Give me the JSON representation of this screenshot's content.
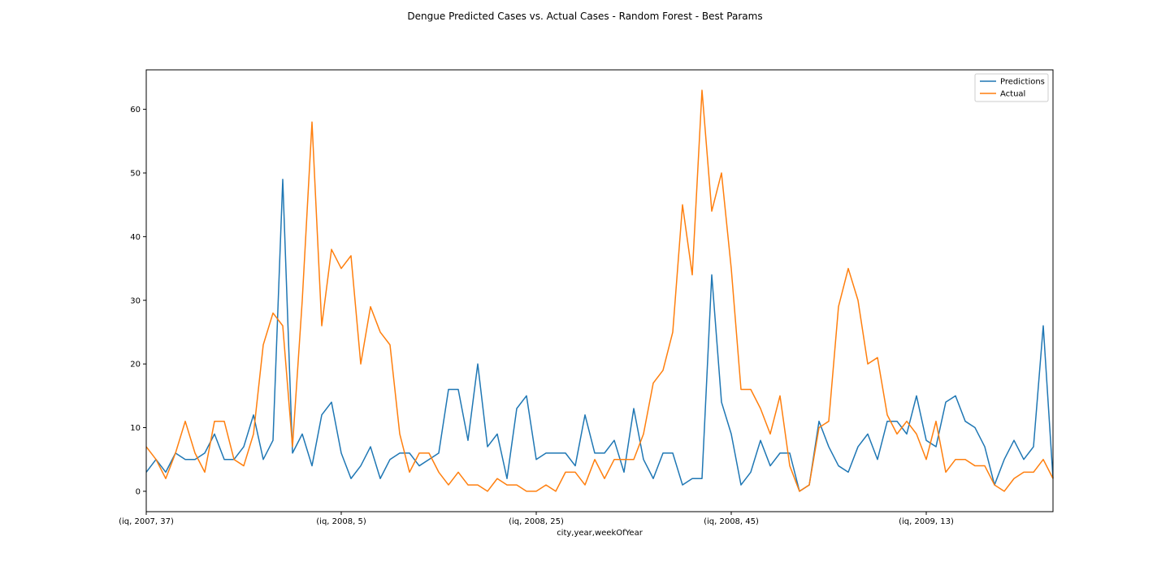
{
  "chart_data": {
    "type": "line",
    "title": "Dengue Predicted Cases vs. Actual Cases - Random Forest - Best Params",
    "xlabel": "city,year,weekOfYear",
    "ylabel": "",
    "x_tick_labels": [
      {
        "index": 0,
        "label": "(iq, 2007, 37)"
      },
      {
        "index": 20,
        "label": "(iq, 2008, 5)"
      },
      {
        "index": 40,
        "label": "(iq, 2008, 25)"
      },
      {
        "index": 60,
        "label": "(iq, 2008, 45)"
      },
      {
        "index": 80,
        "label": "(iq, 2009, 13)"
      }
    ],
    "y_ticks": [
      0,
      10,
      20,
      30,
      40,
      50,
      60
    ],
    "ylim": [
      -3.2,
      66.2
    ],
    "xlim": [
      0,
      93
    ],
    "legend": "top-right",
    "grid": false,
    "series": [
      {
        "name": "Predictions",
        "color": "#1f77b4",
        "values": [
          3,
          5,
          3,
          6,
          5,
          5,
          6,
          9,
          5,
          5,
          7,
          12,
          5,
          8,
          49,
          6,
          9,
          4,
          12,
          14,
          6,
          2,
          4,
          7,
          2,
          5,
          6,
          6,
          4,
          5,
          6,
          16,
          16,
          8,
          20,
          7,
          9,
          2,
          13,
          15,
          5,
          6,
          6,
          6,
          4,
          12,
          6,
          6,
          8,
          3,
          13,
          5,
          2,
          6,
          6,
          1,
          2,
          2,
          34,
          14,
          9,
          1,
          3,
          8,
          4,
          6,
          6,
          0,
          1,
          11,
          7,
          4,
          3,
          7,
          9,
          5,
          11,
          11,
          9,
          15,
          8,
          7,
          14,
          15,
          11,
          10,
          7,
          1,
          5,
          8,
          5,
          7,
          26,
          2
        ]
      },
      {
        "name": "Actual",
        "color": "#ff7f0e",
        "values": [
          7,
          5,
          2,
          6,
          11,
          6,
          3,
          11,
          11,
          5,
          4,
          9,
          23,
          28,
          26,
          7,
          30,
          58,
          26,
          38,
          35,
          37,
          20,
          29,
          25,
          23,
          9,
          3,
          6,
          6,
          3,
          1,
          3,
          1,
          1,
          0,
          2,
          1,
          1,
          0,
          0,
          1,
          0,
          3,
          3,
          1,
          5,
          2,
          5,
          5,
          5,
          9,
          17,
          19,
          25,
          45,
          34,
          63,
          44,
          50,
          35,
          16,
          16,
          13,
          9,
          15,
          4,
          0,
          1,
          10,
          11,
          29,
          35,
          30,
          20,
          21,
          12,
          9,
          11,
          9,
          5,
          11,
          3,
          5,
          5,
          4,
          4,
          1,
          0,
          2,
          3,
          3,
          5,
          2
        ]
      }
    ]
  }
}
